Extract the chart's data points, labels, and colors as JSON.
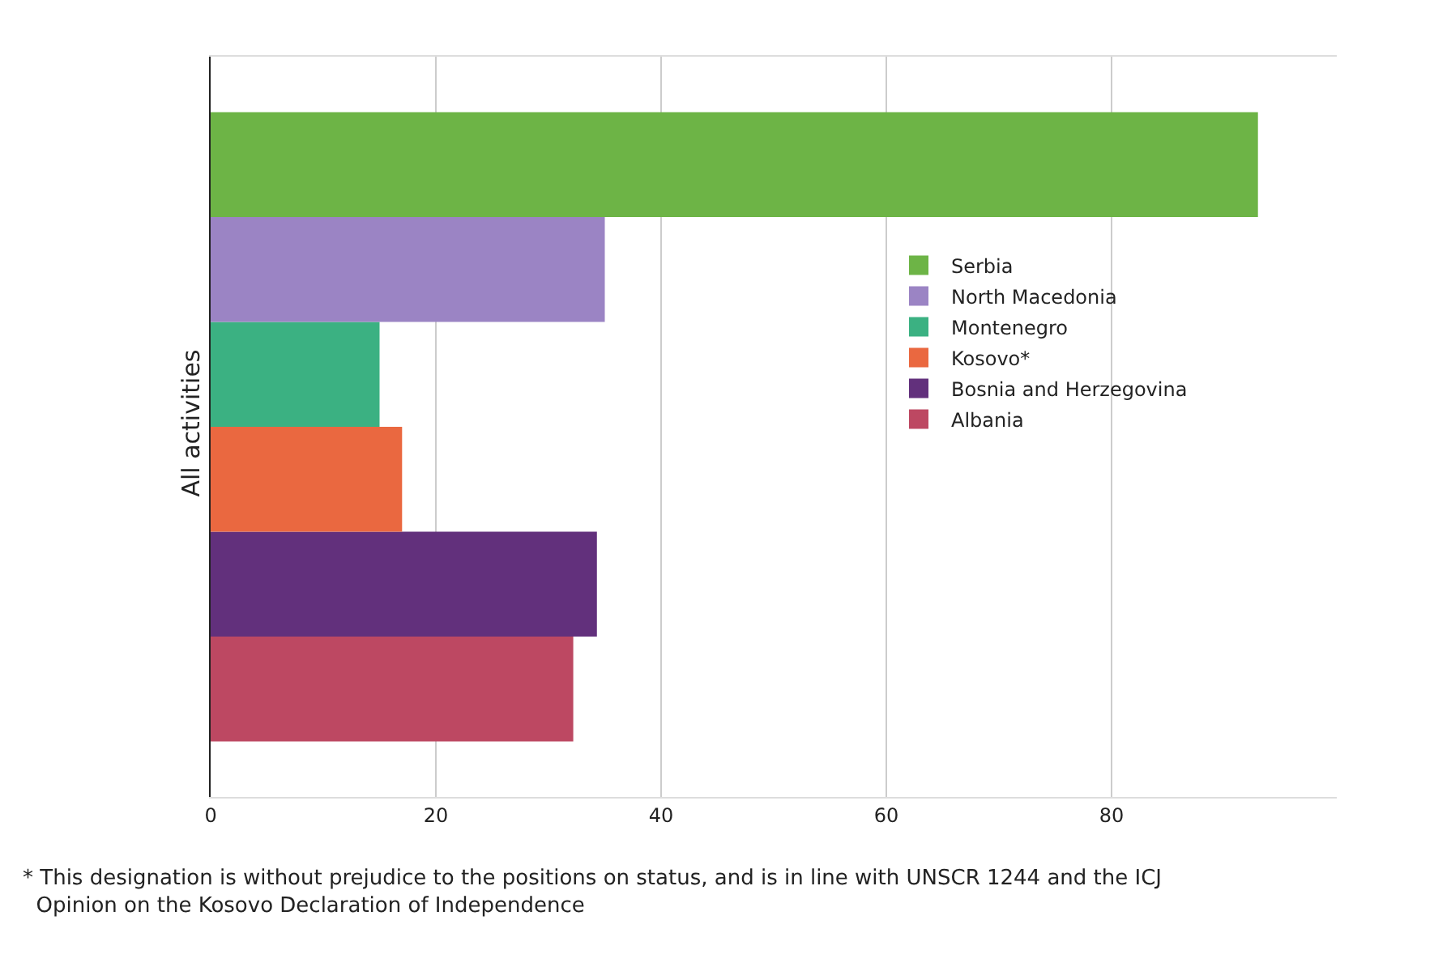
{
  "chart_data": {
    "type": "bar",
    "orientation": "horizontal",
    "categories": [
      "All activities"
    ],
    "series": [
      {
        "name": "Serbia",
        "color": "#6db446",
        "values": [
          93
        ]
      },
      {
        "name": "North Macedonia",
        "color": "#9b84c4",
        "values": [
          35
        ]
      },
      {
        "name": "Montenegro",
        "color": "#3bb182",
        "values": [
          15
        ]
      },
      {
        "name": "Kosovo*",
        "color": "#ea6840",
        "values": [
          17
        ]
      },
      {
        "name": "Bosnia and Herzegovina",
        "color": "#62307c",
        "values": [
          34.3
        ]
      },
      {
        "name": "Albania",
        "color": "#bd4862",
        "values": [
          32.2
        ]
      }
    ],
    "xlim": [
      0,
      100
    ],
    "xticks": [
      0,
      20,
      40,
      60,
      80
    ],
    "grid": "x",
    "legend": "top right",
    "annotations": [
      "* This designation is without prejudice to the positions on status, and is in line with UNSCR 1244 and the ICJ Opinion on the Kosovo Declaration of Independence"
    ]
  }
}
